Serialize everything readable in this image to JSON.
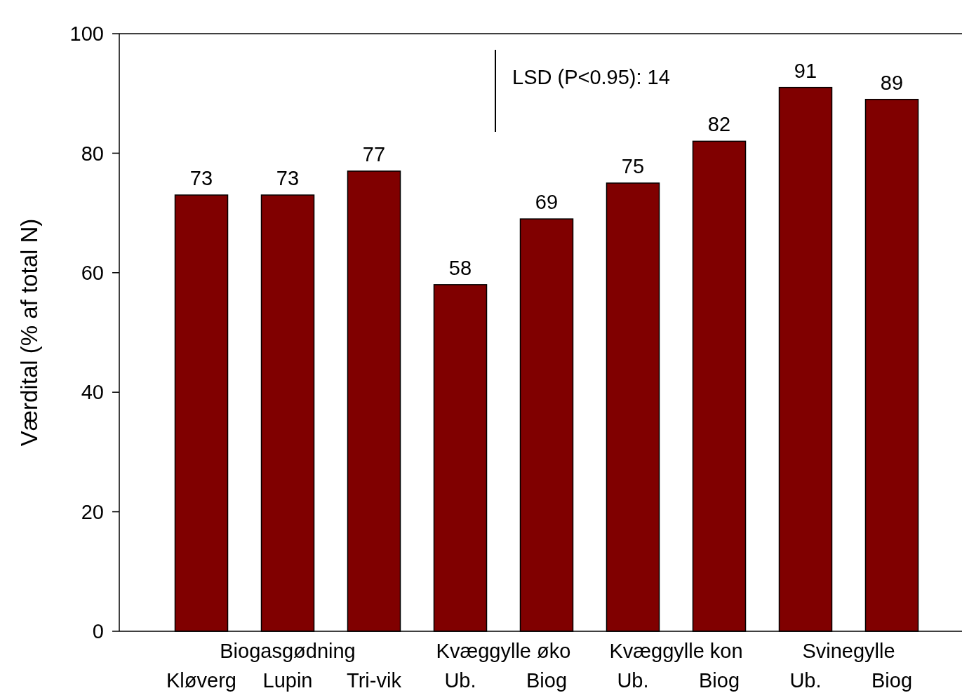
{
  "chart_data": {
    "type": "bar",
    "ylabel": "Værdital (% af total N)",
    "categories": [
      "Kløverg",
      "Lupin",
      "Tri-vik",
      "Ub.",
      "Biog",
      "Ub.",
      "Biog",
      "Ub.",
      "Biog"
    ],
    "values": [
      73,
      73,
      77,
      58,
      69,
      75,
      82,
      91,
      89
    ],
    "color": "#800000",
    "data_labels": true,
    "ylim": [
      0,
      100
    ],
    "yticks": [
      0,
      20,
      40,
      60,
      80,
      100
    ],
    "grid": false,
    "annotations": [
      "LSD (P<0.95): 14",
      "Biogasgødning",
      "Kvæggylle øko",
      "Kvæggylle kon",
      "Svinegylle"
    ]
  }
}
